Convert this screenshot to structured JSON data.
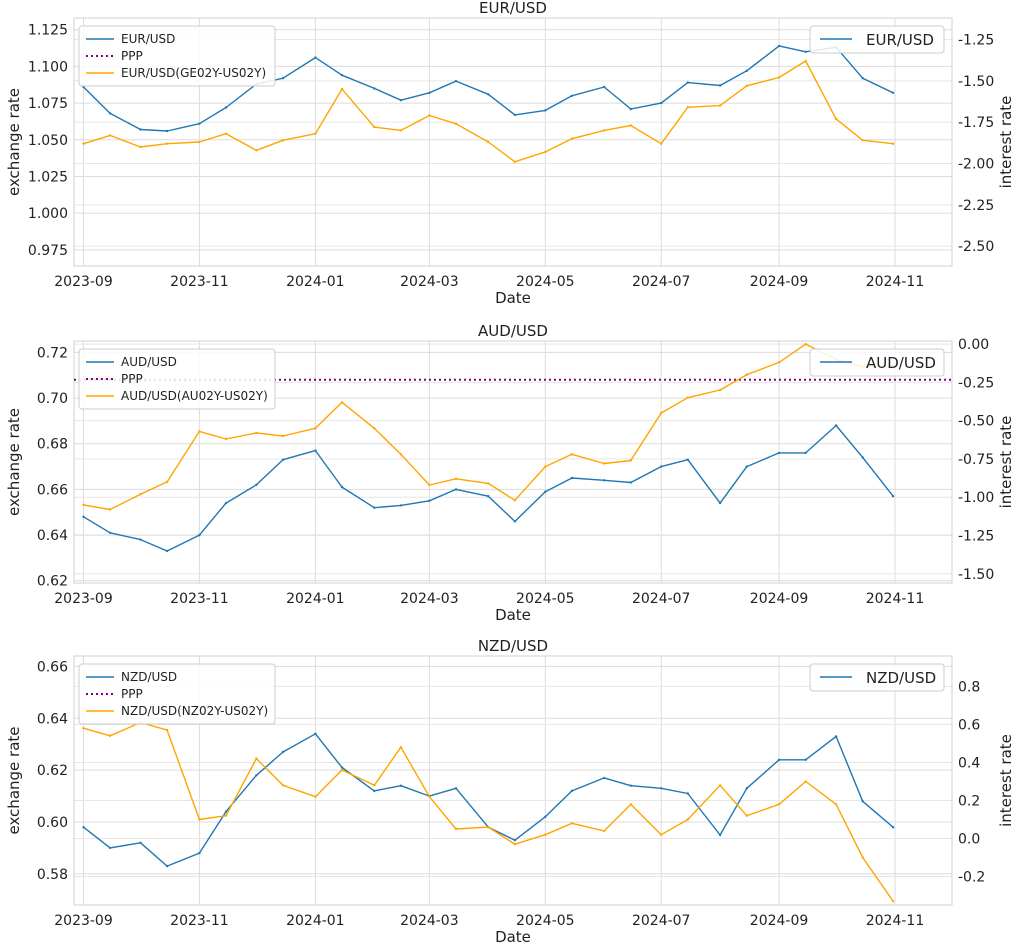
{
  "chart_data": [
    {
      "type": "line",
      "title": "EUR/USD",
      "xlabel": "Date",
      "ylabel_left": "exchange rate",
      "ylabel_right": "interest rate",
      "x_ticks": [
        "2023-09",
        "2023-11",
        "2024-01",
        "2024-03",
        "2024-05",
        "2024-07",
        "2024-09",
        "2024-11"
      ],
      "left_ticks": [
        "0.975",
        "1.000",
        "1.025",
        "1.050",
        "1.075",
        "1.100",
        "1.125"
      ],
      "right_ticks": [
        "-2.50",
        "-2.25",
        "-2.00",
        "-1.75",
        "-1.50",
        "-1.25"
      ],
      "ylim_left": [
        0.964,
        1.133
      ],
      "ylim_right": [
        -2.62,
        -1.12
      ],
      "grid": true,
      "legend": [
        "EUR/USD",
        "PPP",
        "EUR/USD(GE02Y-US02Y)"
      ],
      "legend_position": "top-left",
      "right_legend": "EUR/USD",
      "ppp": null,
      "colors": {
        "fx": "#1f77b4",
        "ppp": "#800080",
        "spread": "#ffa500"
      },
      "series": [
        {
          "name": "EUR/USD",
          "axis": "left",
          "x": [
            "2023-09-01",
            "2023-09-15",
            "2023-10-01",
            "2023-10-15",
            "2023-11-01",
            "2023-11-15",
            "2023-12-01",
            "2023-12-15",
            "2024-01-01",
            "2024-01-15",
            "2024-02-01",
            "2024-02-15",
            "2024-03-01",
            "2024-03-15",
            "2024-04-01",
            "2024-04-15",
            "2024-05-01",
            "2024-05-15",
            "2024-06-01",
            "2024-06-15",
            "2024-07-01",
            "2024-07-15",
            "2024-08-01",
            "2024-08-15",
            "2024-09-01",
            "2024-09-15",
            "2024-10-01",
            "2024-10-15",
            "2024-10-31"
          ],
          "values": [
            1.086,
            1.068,
            1.057,
            1.056,
            1.061,
            1.072,
            1.088,
            1.092,
            1.106,
            1.094,
            1.085,
            1.077,
            1.082,
            1.09,
            1.081,
            1.067,
            1.07,
            1.08,
            1.086,
            1.071,
            1.075,
            1.089,
            1.087,
            1.097,
            1.114,
            1.11,
            1.113,
            1.092,
            1.082
          ]
        },
        {
          "name": "EUR/USD(GE02Y-US02Y)",
          "axis": "right",
          "x": [
            "2023-09-01",
            "2023-09-15",
            "2023-10-01",
            "2023-10-15",
            "2023-11-01",
            "2023-11-15",
            "2023-12-01",
            "2023-12-15",
            "2024-01-01",
            "2024-01-15",
            "2024-02-01",
            "2024-02-15",
            "2024-03-01",
            "2024-03-15",
            "2024-04-01",
            "2024-04-15",
            "2024-05-01",
            "2024-05-15",
            "2024-06-01",
            "2024-06-15",
            "2024-07-01",
            "2024-07-15",
            "2024-08-01",
            "2024-08-15",
            "2024-09-01",
            "2024-09-15",
            "2024-10-01",
            "2024-10-15",
            "2024-10-31"
          ],
          "values": [
            -1.88,
            -1.83,
            -1.9,
            -1.88,
            -1.87,
            -1.82,
            -1.92,
            -1.86,
            -1.82,
            -1.55,
            -1.78,
            -1.8,
            -1.71,
            -1.76,
            -1.87,
            -1.99,
            -1.93,
            -1.85,
            -1.8,
            -1.77,
            -1.88,
            -1.66,
            -1.65,
            -1.53,
            -1.48,
            -1.38,
            -1.73,
            -1.86,
            -1.88
          ]
        }
      ]
    },
    {
      "type": "line",
      "title": "AUD/USD",
      "xlabel": "Date",
      "ylabel_left": "exchange rate",
      "ylabel_right": "interest rate",
      "x_ticks": [
        "2023-09",
        "2023-11",
        "2024-01",
        "2024-03",
        "2024-05",
        "2024-07",
        "2024-09",
        "2024-11"
      ],
      "left_ticks": [
        "0.62",
        "0.64",
        "0.66",
        "0.68",
        "0.70",
        "0.72"
      ],
      "right_ticks": [
        "-1.50",
        "-1.25",
        "-1.00",
        "-0.75",
        "-0.50",
        "-0.25",
        "0.00"
      ],
      "ylim_left": [
        0.619,
        0.725
      ],
      "ylim_right": [
        -1.56,
        0.02
      ],
      "grid": true,
      "legend": [
        "AUD/USD",
        "PPP",
        "AUD/USD(AU02Y-US02Y)"
      ],
      "legend_position": "top-left",
      "right_legend": "AUD/USD",
      "ppp": 0.708,
      "colors": {
        "fx": "#1f77b4",
        "ppp": "#800080",
        "spread": "#ffa500"
      },
      "series": [
        {
          "name": "AUD/USD",
          "axis": "left",
          "x": [
            "2023-09-01",
            "2023-09-15",
            "2023-10-01",
            "2023-10-15",
            "2023-11-01",
            "2023-11-15",
            "2023-12-01",
            "2023-12-15",
            "2024-01-01",
            "2024-01-15",
            "2024-02-01",
            "2024-02-15",
            "2024-03-01",
            "2024-03-15",
            "2024-04-01",
            "2024-04-15",
            "2024-05-01",
            "2024-05-15",
            "2024-06-01",
            "2024-06-15",
            "2024-07-01",
            "2024-07-15",
            "2024-08-01",
            "2024-08-15",
            "2024-09-01",
            "2024-09-15",
            "2024-10-01",
            "2024-10-15",
            "2024-10-31"
          ],
          "values": [
            0.648,
            0.641,
            0.638,
            0.633,
            0.64,
            0.654,
            0.662,
            0.673,
            0.677,
            0.661,
            0.652,
            0.653,
            0.655,
            0.66,
            0.657,
            0.646,
            0.659,
            0.665,
            0.664,
            0.663,
            0.67,
            0.673,
            0.654,
            0.67,
            0.676,
            0.676,
            0.688,
            0.674,
            0.657
          ]
        },
        {
          "name": "AUD/USD(AU02Y-US02Y)",
          "axis": "right",
          "x": [
            "2023-09-01",
            "2023-09-15",
            "2023-10-01",
            "2023-10-15",
            "2023-11-01",
            "2023-11-15",
            "2023-12-01",
            "2023-12-15",
            "2024-01-01",
            "2024-01-15",
            "2024-02-01",
            "2024-02-15",
            "2024-03-01",
            "2024-03-15",
            "2024-04-01",
            "2024-04-15",
            "2024-05-01",
            "2024-05-15",
            "2024-06-01",
            "2024-06-15",
            "2024-07-01",
            "2024-07-15",
            "2024-08-01",
            "2024-08-15",
            "2024-09-01",
            "2024-09-15",
            "2024-10-01",
            "2024-10-15",
            "2024-10-31"
          ],
          "values": [
            -1.05,
            -1.08,
            -0.98,
            -0.9,
            -0.57,
            -0.62,
            -0.58,
            -0.6,
            -0.55,
            -0.38,
            -0.55,
            -0.72,
            -0.92,
            -0.88,
            -0.91,
            -1.02,
            -0.8,
            -0.72,
            -0.78,
            -0.76,
            -0.45,
            -0.35,
            -0.3,
            -0.2,
            -0.12,
            0.0,
            -0.1,
            -0.15,
            -0.14
          ]
        }
      ]
    },
    {
      "type": "line",
      "title": "NZD/USD",
      "xlabel": "Date",
      "ylabel_left": "exchange rate",
      "ylabel_right": "interest rate",
      "x_ticks": [
        "2023-09",
        "2023-11",
        "2024-01",
        "2024-03",
        "2024-05",
        "2024-07",
        "2024-09",
        "2024-11"
      ],
      "left_ticks": [
        "0.58",
        "0.60",
        "0.62",
        "0.64",
        "0.66"
      ],
      "right_ticks": [
        "-0.2",
        "0.0",
        "0.2",
        "0.4",
        "0.6",
        "0.8"
      ],
      "ylim_left": [
        0.568,
        0.664
      ],
      "ylim_right": [
        -0.35,
        0.96
      ],
      "grid": true,
      "legend": [
        "NZD/USD",
        "PPP",
        "NZD/USD(NZ02Y-US02Y)"
      ],
      "legend_position": "top-left",
      "right_legend": "NZD/USD",
      "ppp": null,
      "colors": {
        "fx": "#1f77b4",
        "ppp": "#800080",
        "spread": "#ffa500"
      },
      "series": [
        {
          "name": "NZD/USD",
          "axis": "left",
          "x": [
            "2023-09-01",
            "2023-09-15",
            "2023-10-01",
            "2023-10-15",
            "2023-11-01",
            "2023-11-15",
            "2023-12-01",
            "2023-12-15",
            "2024-01-01",
            "2024-01-15",
            "2024-02-01",
            "2024-02-15",
            "2024-03-01",
            "2024-03-15",
            "2024-04-01",
            "2024-04-15",
            "2024-05-01",
            "2024-05-15",
            "2024-06-01",
            "2024-06-15",
            "2024-07-01",
            "2024-07-15",
            "2024-08-01",
            "2024-08-15",
            "2024-09-01",
            "2024-09-15",
            "2024-10-01",
            "2024-10-15",
            "2024-10-31"
          ],
          "values": [
            0.598,
            0.59,
            0.592,
            0.583,
            0.588,
            0.604,
            0.618,
            0.627,
            0.634,
            0.621,
            0.612,
            0.614,
            0.61,
            0.613,
            0.598,
            0.593,
            0.602,
            0.612,
            0.617,
            0.614,
            0.613,
            0.611,
            0.595,
            0.613,
            0.624,
            0.624,
            0.633,
            0.608,
            0.598
          ]
        },
        {
          "name": "NZD/USD(NZ02Y-US02Y)",
          "axis": "right",
          "x": [
            "2023-09-01",
            "2023-09-15",
            "2023-10-01",
            "2023-10-15",
            "2023-11-01",
            "2023-11-15",
            "2023-12-01",
            "2023-12-15",
            "2024-01-01",
            "2024-01-15",
            "2024-02-01",
            "2024-02-15",
            "2024-03-01",
            "2024-03-15",
            "2024-04-01",
            "2024-04-15",
            "2024-05-01",
            "2024-05-15",
            "2024-06-01",
            "2024-06-15",
            "2024-07-01",
            "2024-07-15",
            "2024-08-01",
            "2024-08-15",
            "2024-09-01",
            "2024-09-15",
            "2024-10-01",
            "2024-10-15",
            "2024-10-31"
          ],
          "values": [
            0.58,
            0.54,
            0.61,
            0.57,
            0.1,
            0.12,
            0.42,
            0.28,
            0.22,
            0.36,
            0.28,
            0.48,
            0.22,
            0.05,
            0.06,
            -0.03,
            0.02,
            0.08,
            0.04,
            0.18,
            0.02,
            0.1,
            0.28,
            0.12,
            0.18,
            0.3,
            0.18,
            -0.1,
            -0.33
          ]
        }
      ]
    }
  ]
}
